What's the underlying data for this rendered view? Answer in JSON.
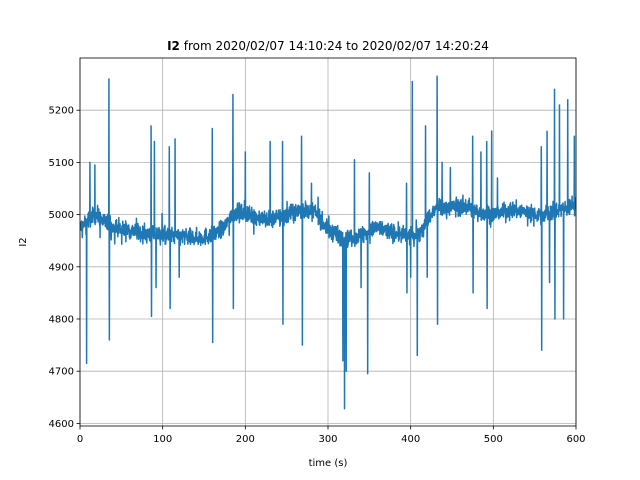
{
  "chart_data": {
    "type": "line",
    "title": {
      "bold_part": "I2",
      "rest": " from 2020/02/07 14:10:24 to 2020/02/07 14:20:24"
    },
    "xlabel": "time (s)",
    "ylabel": "I2",
    "xlim": [
      0,
      600
    ],
    "ylim": [
      4595,
      5300
    ],
    "xticks": [
      0,
      100,
      200,
      300,
      400,
      500,
      600
    ],
    "yticks": [
      4600,
      4700,
      4800,
      4900,
      5000,
      5100,
      5200
    ],
    "grid": true,
    "legend": "none",
    "series": [
      {
        "color": "#1f77b4",
        "baseline": [
          [
            0,
            4975
          ],
          [
            10,
            4990
          ],
          [
            20,
            5000
          ],
          [
            30,
            4985
          ],
          [
            40,
            4975
          ],
          [
            60,
            4970
          ],
          [
            80,
            4962
          ],
          [
            100,
            4960
          ],
          [
            120,
            4958
          ],
          [
            140,
            4955
          ],
          [
            160,
            4960
          ],
          [
            175,
            4975
          ],
          [
            185,
            5005
          ],
          [
            200,
            5000
          ],
          [
            215,
            4995
          ],
          [
            230,
            4990
          ],
          [
            250,
            5000
          ],
          [
            270,
            5010
          ],
          [
            285,
            5005
          ],
          [
            300,
            4970
          ],
          [
            320,
            4955
          ],
          [
            340,
            4960
          ],
          [
            360,
            4975
          ],
          [
            380,
            4965
          ],
          [
            400,
            4958
          ],
          [
            410,
            4965
          ],
          [
            420,
            4990
          ],
          [
            430,
            5010
          ],
          [
            450,
            5015
          ],
          [
            470,
            5015
          ],
          [
            480,
            5005
          ],
          [
            500,
            5000
          ],
          [
            520,
            5010
          ],
          [
            540,
            5005
          ],
          [
            560,
            5000
          ],
          [
            580,
            5010
          ],
          [
            600,
            5020
          ]
        ],
        "spikes": [
          {
            "x": 8,
            "y": 4715
          },
          {
            "x": 12,
            "y": 5100
          },
          {
            "x": 18,
            "y": 5095
          },
          {
            "x": 35,
            "y": 5260
          },
          {
            "x": 35.5,
            "y": 4760
          },
          {
            "x": 86,
            "y": 5170
          },
          {
            "x": 86.5,
            "y": 4805
          },
          {
            "x": 90,
            "y": 5140
          },
          {
            "x": 92,
            "y": 4860
          },
          {
            "x": 108,
            "y": 5130
          },
          {
            "x": 109,
            "y": 4820
          },
          {
            "x": 115,
            "y": 5145
          },
          {
            "x": 120,
            "y": 4880
          },
          {
            "x": 160,
            "y": 5165
          },
          {
            "x": 160.5,
            "y": 4755
          },
          {
            "x": 185,
            "y": 5230
          },
          {
            "x": 185.5,
            "y": 4820
          },
          {
            "x": 200,
            "y": 5120
          },
          {
            "x": 230,
            "y": 5140
          },
          {
            "x": 245,
            "y": 5140
          },
          {
            "x": 245.5,
            "y": 4790
          },
          {
            "x": 268,
            "y": 5150
          },
          {
            "x": 269,
            "y": 4750
          },
          {
            "x": 280,
            "y": 5060
          },
          {
            "x": 318,
            "y": 4720
          },
          {
            "x": 320,
            "y": 4628
          },
          {
            "x": 322,
            "y": 4700
          },
          {
            "x": 332,
            "y": 5105
          },
          {
            "x": 340,
            "y": 4860
          },
          {
            "x": 348,
            "y": 4695
          },
          {
            "x": 350,
            "y": 5080
          },
          {
            "x": 395,
            "y": 5060
          },
          {
            "x": 395.5,
            "y": 4850
          },
          {
            "x": 400,
            "y": 4880
          },
          {
            "x": 402,
            "y": 5255
          },
          {
            "x": 408,
            "y": 4730
          },
          {
            "x": 418,
            "y": 5170
          },
          {
            "x": 420,
            "y": 4880
          },
          {
            "x": 432,
            "y": 5265
          },
          {
            "x": 432.5,
            "y": 4790
          },
          {
            "x": 438,
            "y": 5100
          },
          {
            "x": 448,
            "y": 5090
          },
          {
            "x": 475,
            "y": 5150
          },
          {
            "x": 475.5,
            "y": 4850
          },
          {
            "x": 485,
            "y": 5120
          },
          {
            "x": 492,
            "y": 5140
          },
          {
            "x": 492.5,
            "y": 4820
          },
          {
            "x": 498,
            "y": 5160
          },
          {
            "x": 505,
            "y": 5070
          },
          {
            "x": 558,
            "y": 5130
          },
          {
            "x": 558.5,
            "y": 4740
          },
          {
            "x": 565,
            "y": 5160
          },
          {
            "x": 568,
            "y": 4870
          },
          {
            "x": 574,
            "y": 5240
          },
          {
            "x": 574.5,
            "y": 4800
          },
          {
            "x": 580,
            "y": 5210
          },
          {
            "x": 585,
            "y": 4800
          },
          {
            "x": 590,
            "y": 5220
          },
          {
            "x": 598,
            "y": 5150
          }
        ]
      }
    ]
  }
}
